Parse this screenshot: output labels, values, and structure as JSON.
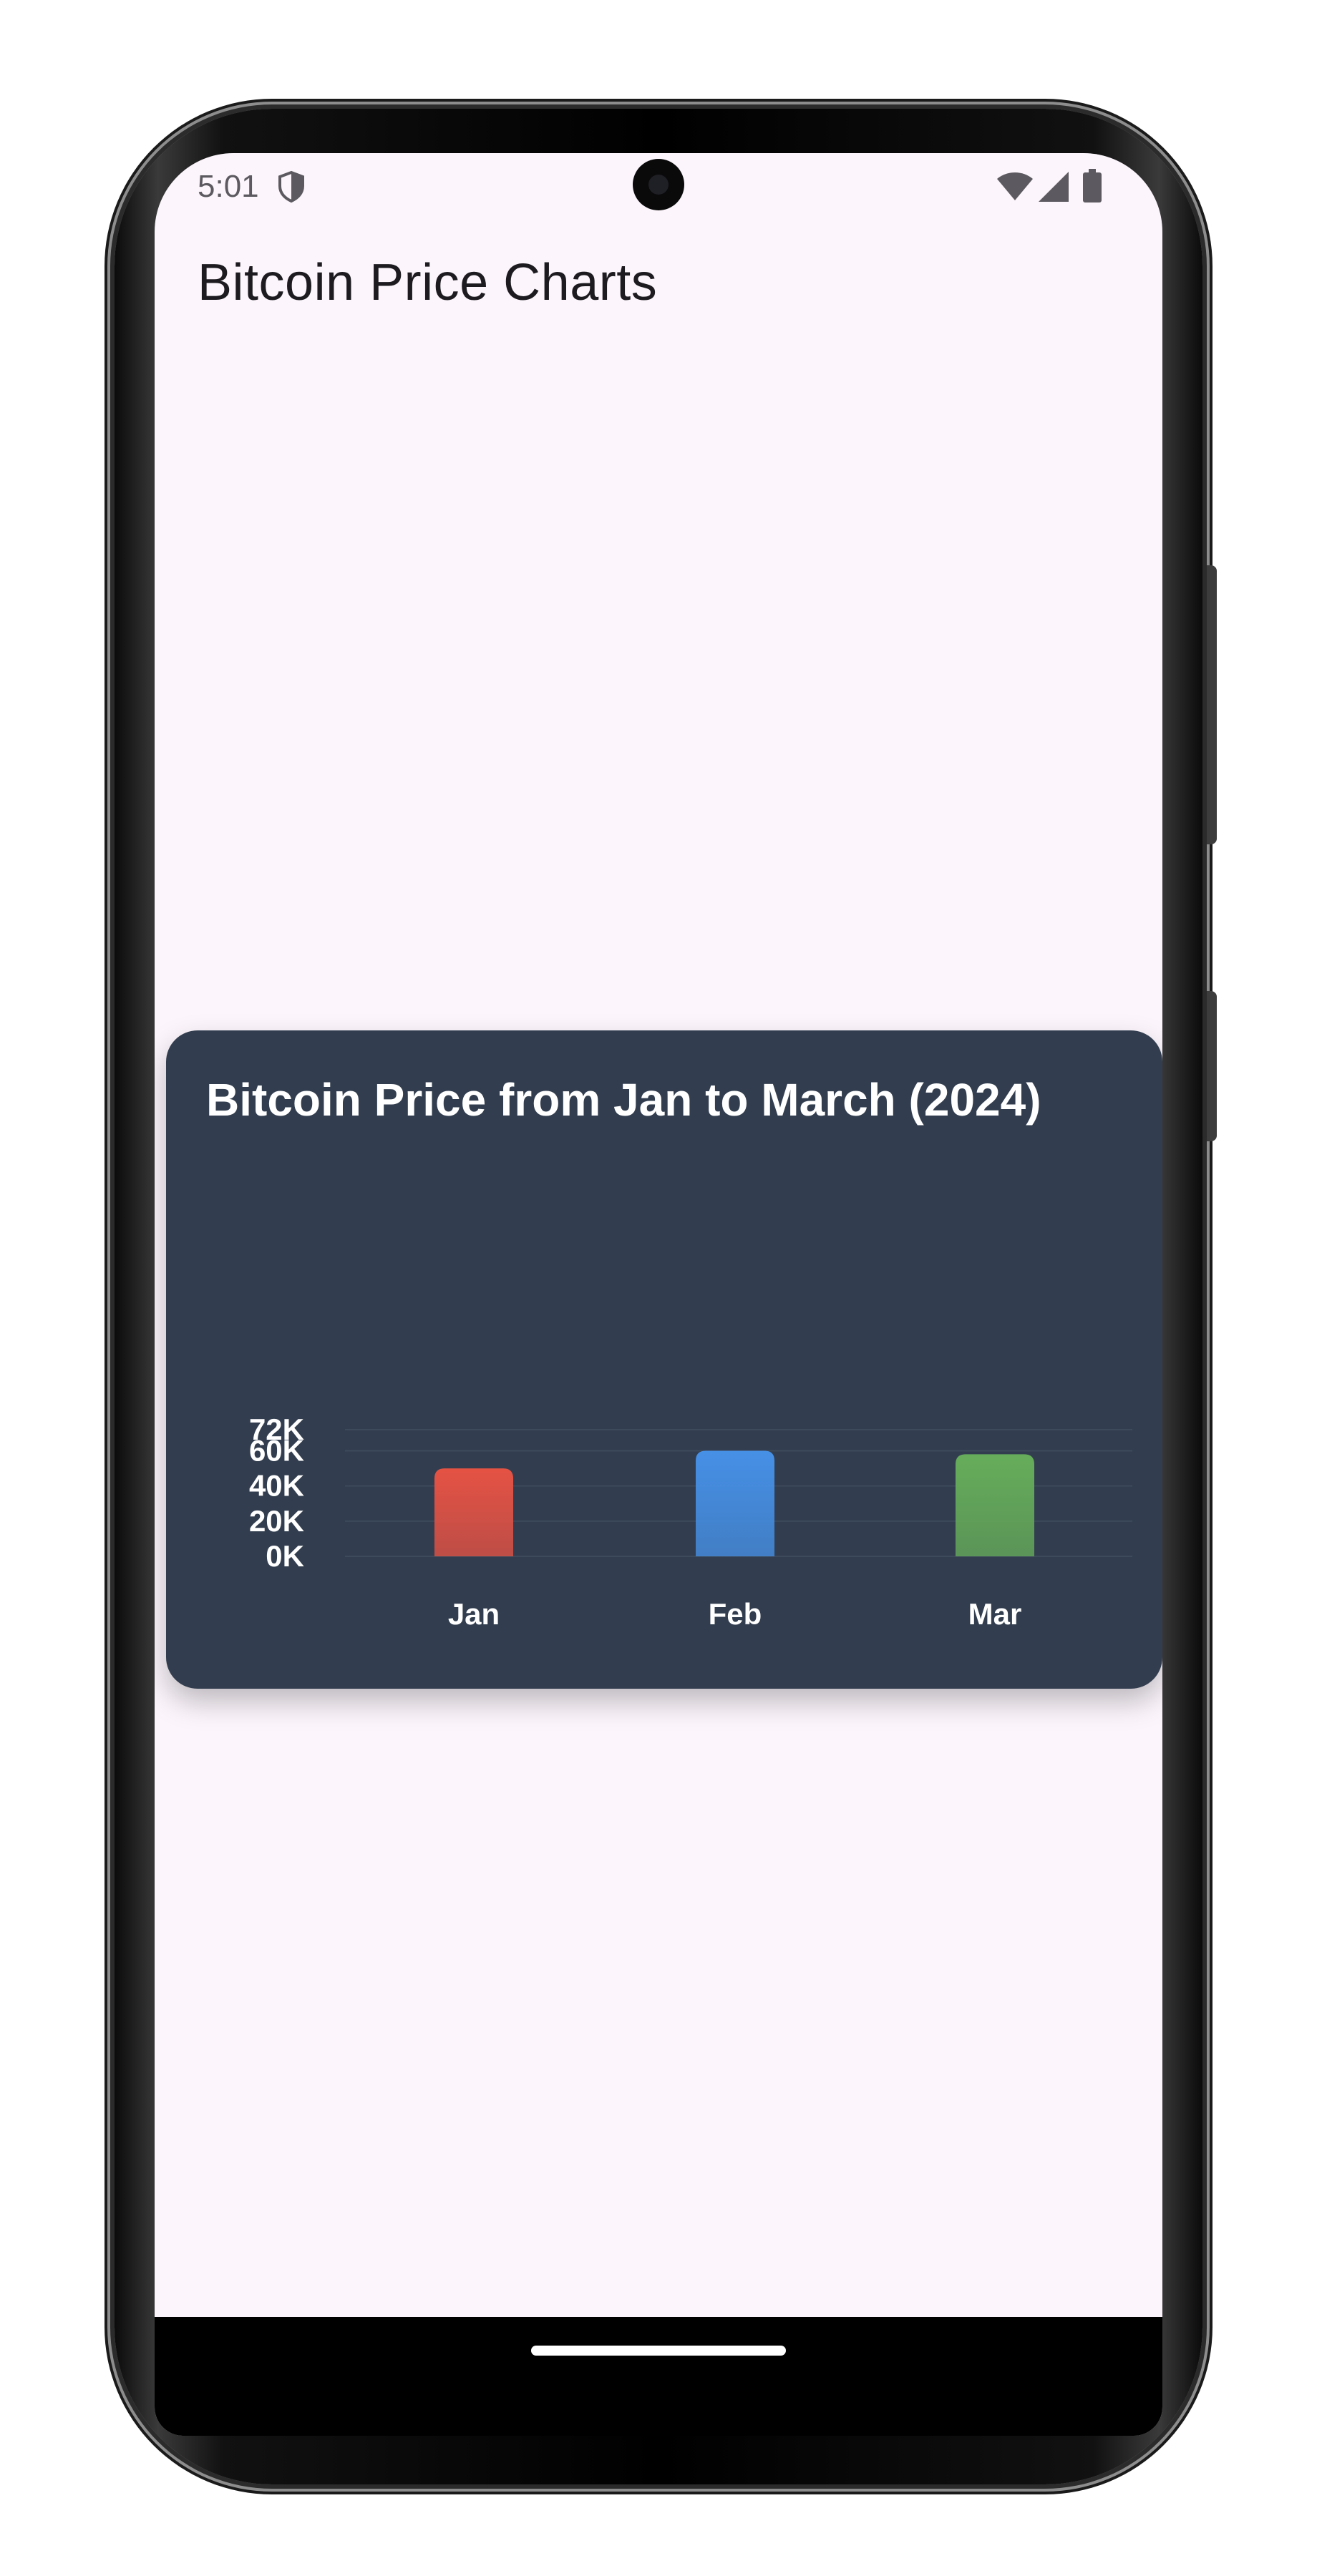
{
  "status_bar": {
    "time": "5:01"
  },
  "icons": {
    "shield": "shield-icon",
    "wifi": "wifi-icon",
    "signal": "signal-icon",
    "battery": "battery-icon"
  },
  "app_bar": {
    "title": "Bitcoin Price Charts"
  },
  "colors": {
    "screen_bg": "#fcf6fc",
    "card_bg": "#323e4f",
    "jan": "#e55244",
    "feb": "#4690e6",
    "mar": "#66ad5a"
  },
  "chart_data": {
    "type": "bar",
    "title": "Bitcoin Price from Jan to March (2024)",
    "categories": [
      "Jan",
      "Feb",
      "Mar"
    ],
    "values": [
      50000,
      60000,
      58000
    ],
    "colors": [
      "#e55244",
      "#4690e6",
      "#66ad5a"
    ],
    "ylim": [
      0,
      72000
    ],
    "yticks": [
      0,
      20000,
      40000,
      60000,
      72000
    ],
    "ytick_labels": [
      "0K",
      "20K",
      "40K",
      "60K",
      "72K"
    ],
    "grid": true,
    "legend": "none"
  }
}
